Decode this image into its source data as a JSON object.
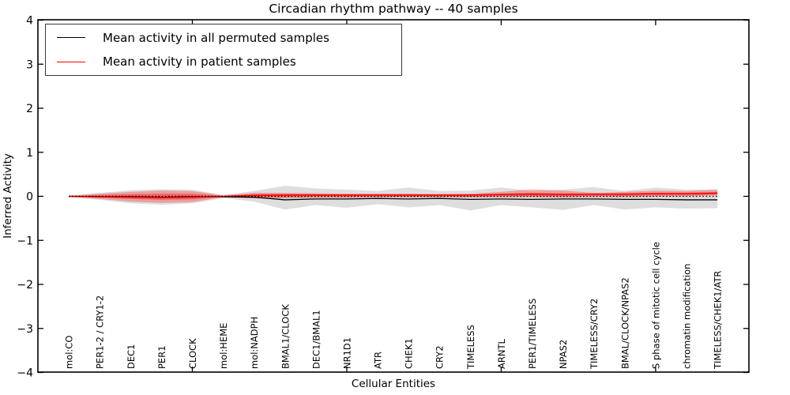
{
  "chart_data": {
    "type": "area",
    "title": "Circadian rhythm pathway -- 40 samples",
    "xlabel": "Cellular Entities",
    "ylabel": "Inferred Activity",
    "ylim": [
      -4,
      4
    ],
    "ytick_labels": [
      "4",
      "3",
      "2",
      "1",
      "0",
      "−1",
      "−2",
      "−3",
      "−4"
    ],
    "ytick_values": [
      4,
      3,
      2,
      1,
      0,
      -1,
      -2,
      -3,
      -4
    ],
    "xtick_mark_indices": [
      4,
      9,
      14,
      19
    ],
    "grid": false,
    "legend": {
      "position": "upper left",
      "entries": [
        {
          "label": "Mean activity in all permuted samples",
          "color": "#000000"
        },
        {
          "label": "Mean activity in patient samples",
          "color": "#ff0000"
        }
      ]
    },
    "categories": [
      "mol:CO",
      "PER1-2 / CRY1-2",
      "DEC1",
      "PER1",
      "CLOCK",
      "mol:HEME",
      "mol:NADPH",
      "BMAL1/CLOCK",
      "DEC1/BMAL1",
      "NR1D1",
      "ATR",
      "CHEK1",
      "CRY2",
      "TIMELESS",
      "ARNTL",
      "PER1/TIMELESS",
      "NPAS2",
      "TIMELESS/CRY2",
      "BMAL/CLOCK/NPAS2",
      "S phase of mitotic cell cycle",
      "chromatin modification",
      "TIMELESS/CHEK1/ATR"
    ],
    "series": [
      {
        "name": "Mean activity in all permuted samples",
        "color": "#000000",
        "values": [
          0.0,
          -0.01,
          -0.01,
          -0.02,
          -0.01,
          -0.01,
          -0.02,
          -0.08,
          -0.06,
          -0.06,
          -0.05,
          -0.06,
          -0.05,
          -0.07,
          -0.06,
          -0.07,
          -0.06,
          -0.06,
          -0.07,
          -0.07,
          -0.08,
          -0.08
        ]
      },
      {
        "name": "Mean activity in patient samples",
        "color": "#ff0000",
        "values": [
          0.0,
          -0.01,
          -0.02,
          -0.03,
          -0.02,
          0.0,
          0.02,
          0.03,
          0.03,
          0.03,
          0.03,
          0.03,
          0.03,
          0.03,
          0.04,
          0.05,
          0.04,
          0.05,
          0.05,
          0.06,
          0.06,
          0.07
        ]
      }
    ],
    "reference_line": {
      "value": 0,
      "style": "dotted",
      "color": "#000000"
    },
    "bands": [
      {
        "name": "permuted-confidence-band",
        "color": "rgba(0,0,0,0.13)",
        "upper": [
          0.02,
          0.08,
          0.14,
          0.16,
          0.15,
          0.03,
          0.12,
          0.24,
          0.18,
          0.15,
          0.12,
          0.2,
          0.12,
          0.13,
          0.2,
          0.12,
          0.15,
          0.21,
          0.12,
          0.2,
          0.15,
          0.16
        ],
        "lower": [
          -0.02,
          -0.08,
          -0.16,
          -0.19,
          -0.16,
          -0.04,
          -0.12,
          -0.3,
          -0.2,
          -0.26,
          -0.18,
          -0.25,
          -0.2,
          -0.32,
          -0.2,
          -0.25,
          -0.31,
          -0.2,
          -0.3,
          -0.25,
          -0.28,
          -0.27
        ]
      },
      {
        "name": "patient-confidence-band-outer",
        "color": "rgba(255,0,0,0.28)",
        "upper": [
          0.01,
          0.06,
          0.1,
          0.13,
          0.12,
          0.02,
          0.08,
          0.08,
          0.07,
          0.06,
          0.06,
          0.06,
          0.05,
          0.06,
          0.1,
          0.16,
          0.13,
          0.08,
          0.1,
          0.13,
          0.12,
          0.15
        ],
        "lower": [
          -0.01,
          -0.06,
          -0.12,
          -0.15,
          -0.13,
          -0.02,
          -0.05,
          -0.05,
          -0.04,
          -0.04,
          -0.03,
          -0.03,
          -0.03,
          -0.03,
          -0.02,
          -0.02,
          -0.03,
          -0.02,
          -0.02,
          -0.01,
          0.0,
          0.02
        ]
      },
      {
        "name": "patient-confidence-band-inner",
        "color": "rgba(255,0,0,0.35)",
        "upper": [
          0.005,
          0.03,
          0.05,
          0.06,
          0.06,
          0.01,
          0.05,
          0.05,
          0.05,
          0.04,
          0.04,
          0.04,
          0.04,
          0.04,
          0.06,
          0.08,
          0.07,
          0.06,
          0.07,
          0.08,
          0.08,
          0.1
        ],
        "lower": [
          -0.005,
          -0.03,
          -0.06,
          -0.08,
          -0.07,
          -0.01,
          -0.02,
          -0.02,
          -0.01,
          -0.01,
          -0.01,
          -0.01,
          -0.01,
          -0.01,
          0.0,
          0.0,
          0.0,
          0.01,
          0.01,
          0.02,
          0.02,
          0.04
        ]
      }
    ]
  }
}
